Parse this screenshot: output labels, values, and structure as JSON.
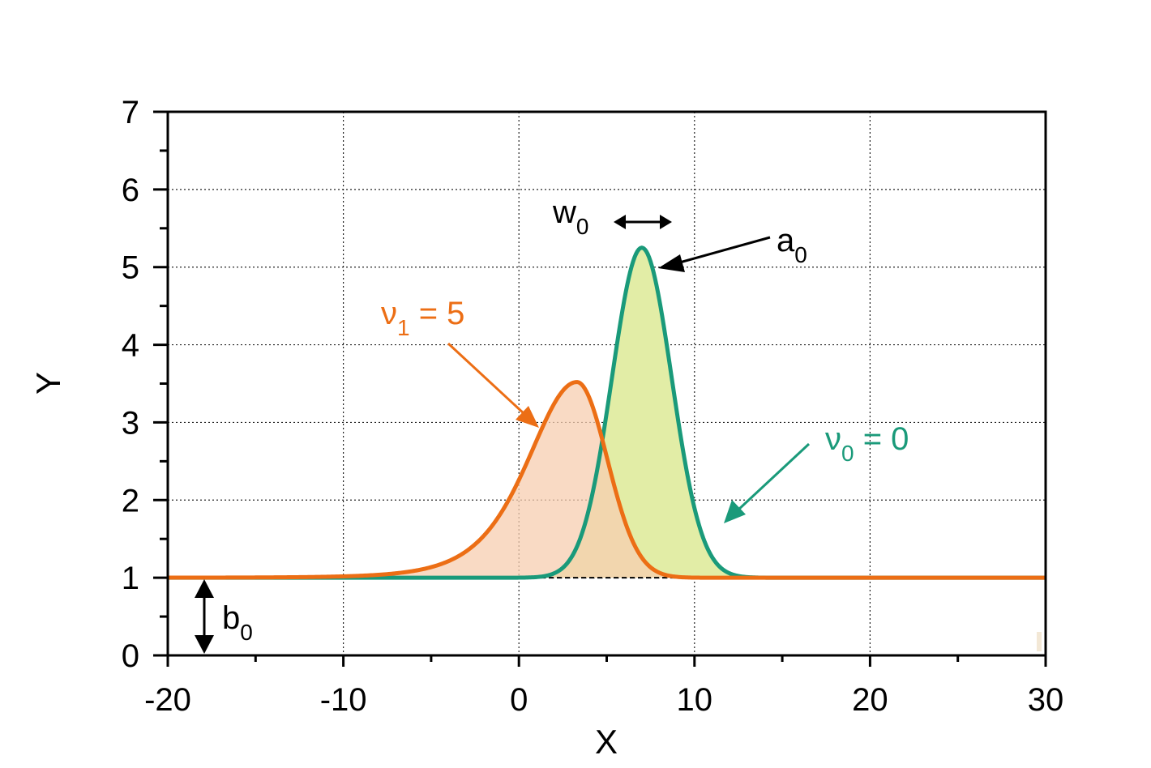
{
  "chart_data": {
    "type": "line",
    "xlabel": "X",
    "ylabel": "Y",
    "xlim": [
      -20,
      30
    ],
    "ylim": [
      0,
      7
    ],
    "grid": true,
    "x_ticks": [
      -20,
      -10,
      0,
      10,
      20,
      30
    ],
    "x_tick_labels": [
      "-20",
      "-10",
      "0",
      "10",
      "20",
      "30"
    ],
    "y_ticks": [
      0,
      1,
      2,
      3,
      4,
      5,
      6,
      7
    ],
    "y_tick_labels": [
      "0",
      "1",
      "2",
      "3",
      "4",
      "5",
      "6",
      "7"
    ],
    "baseline": 1,
    "series": [
      {
        "name": "v0 = 0",
        "color": "#1a9a7a",
        "fill": "#e2eda6",
        "params": {
          "b": 1,
          "a": 4.25,
          "center": 7,
          "w": 1.7,
          "nu": 0
        },
        "peak": {
          "x": 7,
          "y": 5.25
        }
      },
      {
        "name": "v1 = 5",
        "color": "#ec6e15",
        "fill": "#f7cdb0",
        "params": {
          "b": 1,
          "a": 2.52,
          "center": 3.3,
          "w": 1.7,
          "nu": 5
        },
        "peak": {
          "x": 3.3,
          "y": 3.52
        }
      }
    ],
    "annotations": {
      "w0": {
        "text": "w",
        "sub": "0"
      },
      "a0": {
        "text": "a",
        "sub": "0"
      },
      "b0": {
        "text": "b",
        "sub": "0"
      },
      "nu1": {
        "symbol": "ν",
        "sub": "1",
        "rest": " = 5"
      },
      "nu0": {
        "symbol": "ν",
        "sub": "0",
        "rest": " = 0"
      }
    }
  }
}
